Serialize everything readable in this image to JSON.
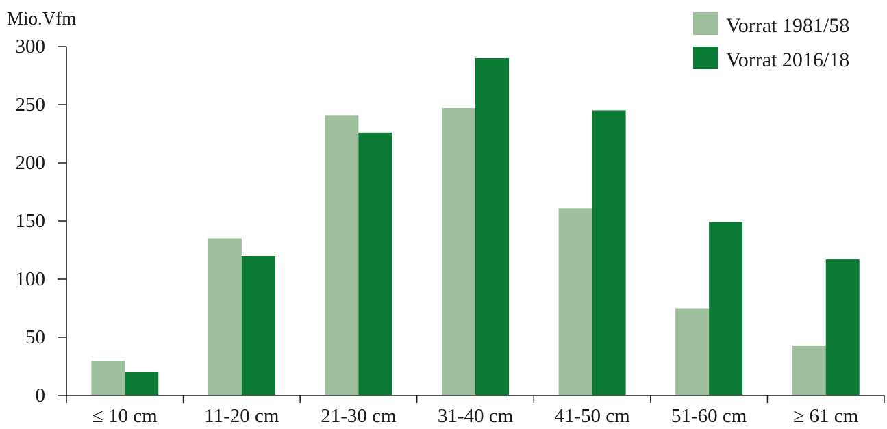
{
  "chart_data": {
    "type": "bar",
    "title": "",
    "xlabel": "",
    "ylabel": "Mio.Vfm",
    "categories": [
      "≤ 10 cm",
      "11-20 cm",
      "21-30 cm",
      "31-40 cm",
      "41-50 cm",
      "51-60 cm",
      "≥ 61 cm"
    ],
    "series": [
      {
        "name": "Vorrat 1981/58",
        "color": "#9dbf9b",
        "values": [
          30,
          135,
          241,
          247,
          161,
          75,
          43
        ]
      },
      {
        "name": "Vorrat 2016/18",
        "color": "#0a7a35",
        "values": [
          20,
          120,
          226,
          290,
          245,
          149,
          117
        ]
      }
    ],
    "ylim": [
      0,
      300
    ],
    "yticks": [
      "0",
      "50",
      "100",
      "150",
      "200",
      "250",
      "300"
    ],
    "grid": false,
    "legend_position": "top-right"
  }
}
